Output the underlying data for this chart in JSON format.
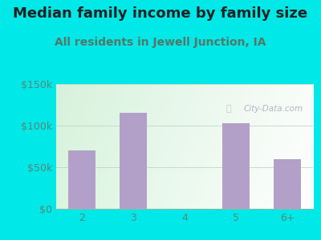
{
  "title": "Median family income by family size",
  "subtitle": "All residents in Jewell Junction, IA",
  "categories": [
    "2",
    "3",
    "4",
    "5",
    "6+"
  ],
  "values": [
    70000,
    115000,
    0,
    103000,
    60000
  ],
  "bar_color": "#b3a0c8",
  "outer_bg": "#00e8e8",
  "plot_bg_colors": [
    "#d5edd8",
    "#eef8f0",
    "#f8fef8"
  ],
  "title_color": "#222222",
  "subtitle_color": "#557766",
  "tick_color": "#558877",
  "watermark_text": "City-Data.com",
  "watermark_color": "#a0aeb8",
  "ylim": [
    0,
    150000
  ],
  "yticks": [
    0,
    50000,
    100000,
    150000
  ],
  "ytick_labels": [
    "$0",
    "$50k",
    "$100k",
    "$150k"
  ],
  "title_fontsize": 13,
  "subtitle_fontsize": 10,
  "tick_fontsize": 9
}
